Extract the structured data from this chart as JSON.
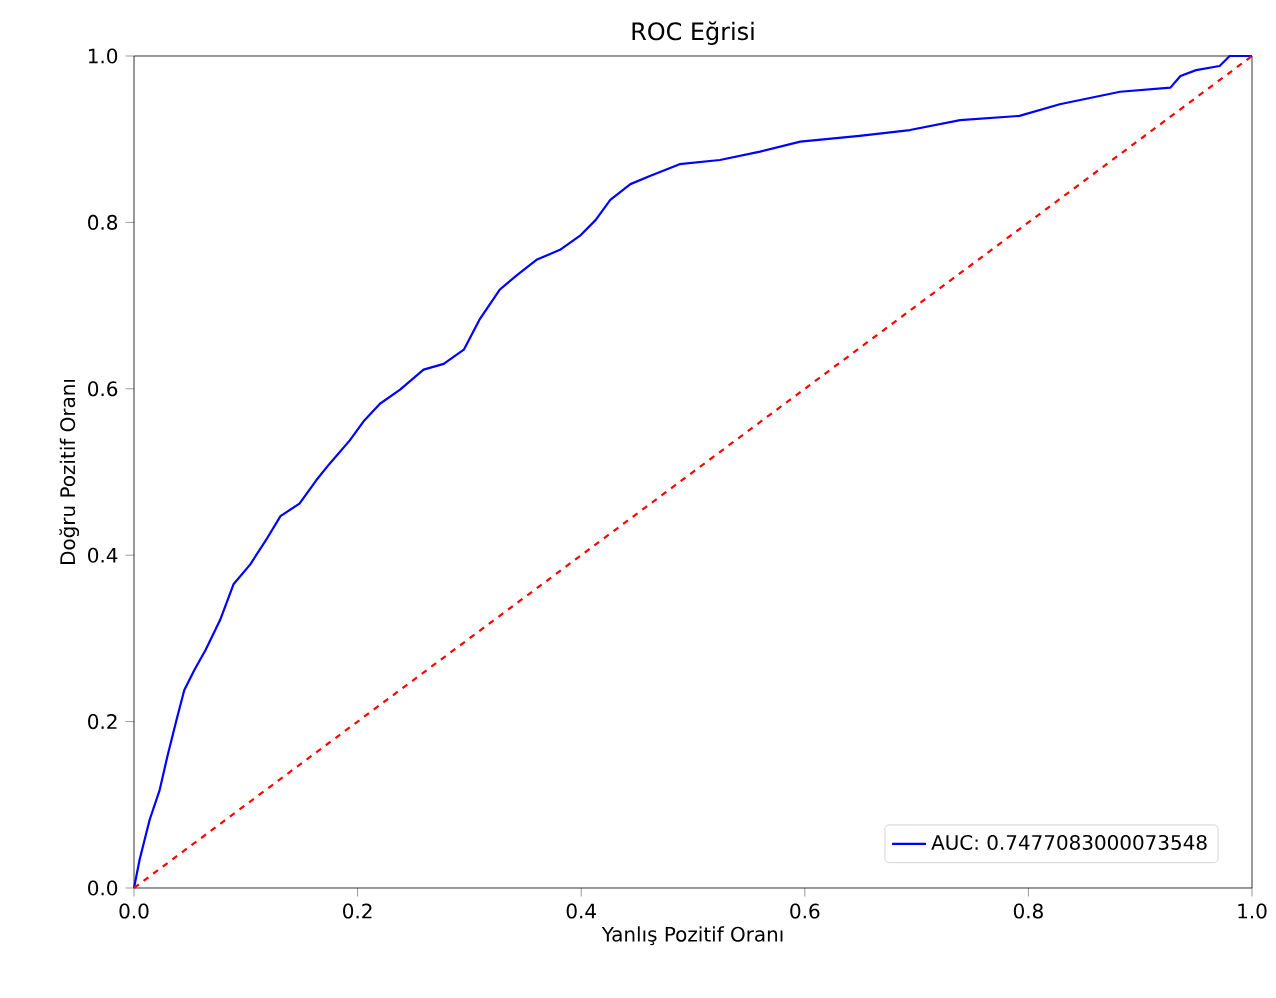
{
  "chart_data": {
    "type": "line",
    "title": "ROC Eğrisi",
    "xlabel": "Yanlış Pozitif Oranı",
    "ylabel": "Doğru Pozitif Oranı",
    "xlim": [
      0,
      1
    ],
    "ylim": [
      0,
      1
    ],
    "xticks": [
      {
        "value": 0,
        "label": "0.0"
      },
      {
        "value": 0.2,
        "label": "0.2"
      },
      {
        "value": 0.4,
        "label": "0.4"
      },
      {
        "value": 0.6,
        "label": "0.6"
      },
      {
        "value": 0.8,
        "label": "0.8"
      },
      {
        "value": 1,
        "label": "1.0"
      }
    ],
    "yticks": [
      {
        "value": 0,
        "label": "0.0"
      },
      {
        "value": 0.2,
        "label": "0.2"
      },
      {
        "value": 0.4,
        "label": "0.4"
      },
      {
        "value": 0.6,
        "label": "0.6"
      },
      {
        "value": 0.8,
        "label": "0.8"
      },
      {
        "value": 1,
        "label": "1.0"
      }
    ],
    "legend": "bottom right",
    "series": [
      {
        "name": "AUC: 0.7477083000073548",
        "color": "#0000ff",
        "line_style": "solid",
        "x": [
          0,
          0.005,
          0.014,
          0.023,
          0.03,
          0.038,
          0.045,
          0.054,
          0.064,
          0.077,
          0.089,
          0.104,
          0.118,
          0.131,
          0.148,
          0.163,
          0.175,
          0.193,
          0.206,
          0.22,
          0.238,
          0.259,
          0.277,
          0.295,
          0.309,
          0.327,
          0.342,
          0.36,
          0.381,
          0.399,
          0.413,
          0.426,
          0.444,
          0.462,
          0.488,
          0.524,
          0.56,
          0.596,
          0.649,
          0.694,
          0.739,
          0.792,
          0.828,
          0.882,
          0.927,
          0.936,
          0.95,
          0.971,
          0.98,
          1
        ],
        "values": [
          0,
          0.034,
          0.082,
          0.118,
          0.159,
          0.202,
          0.238,
          0.262,
          0.286,
          0.322,
          0.365,
          0.389,
          0.418,
          0.447,
          0.462,
          0.49,
          0.51,
          0.538,
          0.562,
          0.582,
          0.599,
          0.623,
          0.63,
          0.647,
          0.683,
          0.719,
          0.736,
          0.755,
          0.767,
          0.784,
          0.803,
          0.827,
          0.846,
          0.856,
          0.87,
          0.875,
          0.885,
          0.897,
          0.904,
          0.911,
          0.923,
          0.928,
          0.942,
          0.957,
          0.962,
          0.976,
          0.983,
          0.988,
          1,
          1
        ]
      },
      {
        "color": "#ff0000",
        "line_style": "dashed",
        "x": [
          0,
          1
        ],
        "values": [
          0,
          1
        ]
      }
    ]
  }
}
